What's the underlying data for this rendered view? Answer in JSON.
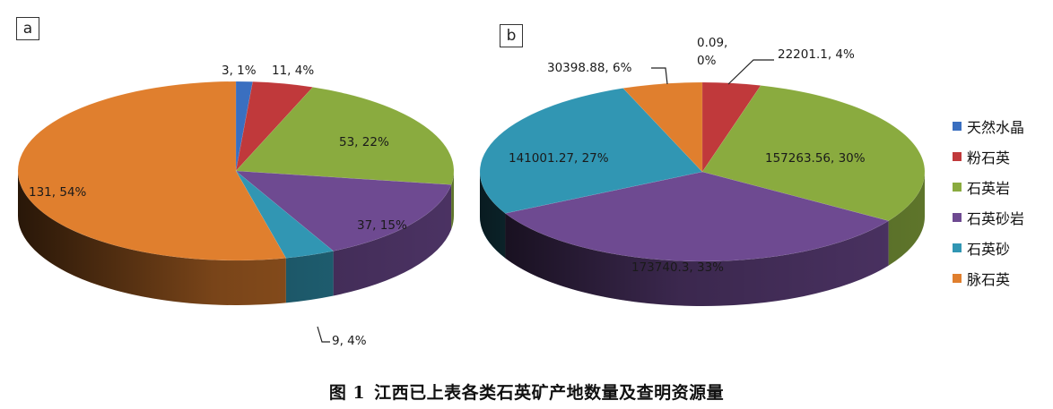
{
  "caption": {
    "figure_number": "图 1",
    "text": "江西已上表各类石英矿产地数量及查明资源量"
  },
  "legend": {
    "items": [
      {
        "label": "天然水晶",
        "color": "#3a6fc0"
      },
      {
        "label": "粉石英",
        "color": "#c0393b"
      },
      {
        "label": "石英岩",
        "color": "#8aab3f"
      },
      {
        "label": "石英砂岩",
        "color": "#6e4a91"
      },
      {
        "label": "石英砂",
        "color": "#3196b3"
      },
      {
        "label": "脉石英",
        "color": "#e07f2e"
      }
    ]
  },
  "chart_data": [
    {
      "type": "pie",
      "panel_label": "a",
      "title": "",
      "style": "3d",
      "categories": [
        "天然水晶",
        "粉石英",
        "石英岩",
        "石英砂岩",
        "石英砂",
        "脉石英"
      ],
      "values": [
        3,
        11,
        53,
        37,
        9,
        131
      ],
      "percent_labels": [
        "1%",
        "4%",
        "22%",
        "15%",
        "4%",
        "54%"
      ],
      "data_labels": [
        "3, 1%",
        "11, 4%",
        "53, 22%",
        "37, 15%",
        "9, 4%",
        "131, 54%"
      ],
      "legend_position": "right"
    },
    {
      "type": "pie",
      "panel_label": "b",
      "title": "",
      "style": "3d",
      "categories": [
        "天然水晶",
        "粉石英",
        "石英岩",
        "石英砂岩",
        "石英砂",
        "脉石英"
      ],
      "values": [
        0.09,
        22201.1,
        157263.56,
        173740.3,
        141001.27,
        30398.88
      ],
      "percent_labels": [
        "0%",
        "4%",
        "30%",
        "33%",
        "27%",
        "6%"
      ],
      "data_labels": [
        "0.09, 0%",
        "22201.1, 4%",
        "157263.56, 30%",
        "173740.3, 33%",
        "141001.27, 27%",
        "30398.88, 6%"
      ],
      "legend_position": "right"
    }
  ]
}
